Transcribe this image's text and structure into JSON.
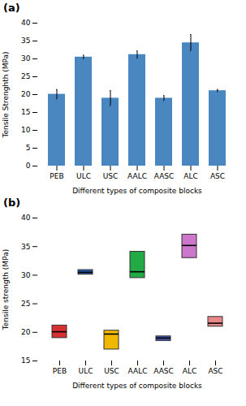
{
  "chart_data": [
    {
      "type": "bar",
      "title": "(a)",
      "categories": [
        "PEB",
        "ULC",
        "USC",
        "AALC",
        "AASC",
        "ALC",
        "ASC"
      ],
      "values": [
        20.1,
        30.5,
        19.0,
        31.2,
        19.0,
        34.5,
        21.1
      ],
      "errors": [
        1.3,
        0.5,
        2.1,
        1.0,
        0.7,
        2.3,
        0.3
      ],
      "color": "#4a86c0",
      "xlabel": "Different types of composite blocks",
      "ylabel": "Tensile Strenghth (MPa)",
      "ylim": [
        0,
        40
      ],
      "yticks": [
        0,
        5,
        10,
        15,
        20,
        25,
        30,
        35,
        40
      ]
    },
    {
      "type": "box",
      "title": "(b)",
      "categories": [
        "PEB",
        "ULC",
        "USC",
        "AALC",
        "AASC",
        "ALC",
        "ASC"
      ],
      "q1": [
        19.0,
        30.1,
        17.0,
        29.5,
        18.5,
        33.0,
        21.0
      ],
      "median": [
        20.1,
        30.5,
        19.7,
        30.6,
        19.0,
        35.2,
        21.6
      ],
      "q3": [
        21.2,
        30.9,
        20.3,
        34.1,
        19.3,
        37.1,
        22.7
      ],
      "colors": [
        "#d63030",
        "#2255aa",
        "#f0b800",
        "#22aa44",
        "#4455aa",
        "#cc77cc",
        "#e88888"
      ],
      "xlabel": "Different types of composite blocks",
      "ylabel": "Tensile strength (MPa)",
      "ylim": [
        15,
        40
      ],
      "yticks": [
        15,
        20,
        25,
        30,
        35,
        40
      ]
    }
  ]
}
